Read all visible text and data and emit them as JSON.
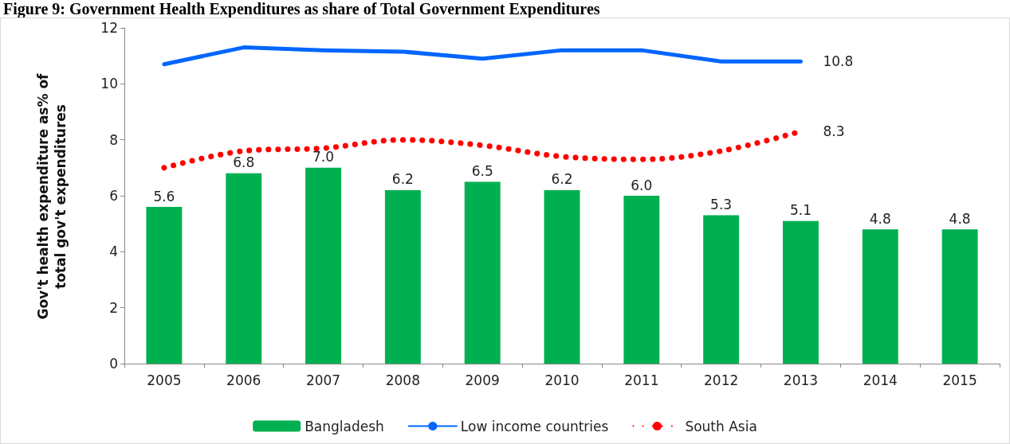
{
  "chart_data": {
    "type": "bar",
    "title": "Figure 9: Government Health Expenditures as share of Total Government Expenditures",
    "ylabel": "Gov't health expenditure as% of total gov't expenditures",
    "categories": [
      "2005",
      "2006",
      "2007",
      "2008",
      "2009",
      "2010",
      "2011",
      "2012",
      "2013",
      "2014",
      "2015"
    ],
    "series": [
      {
        "name": "Bangladesh",
        "color": "#00b050",
        "values": [
          5.6,
          6.8,
          7.0,
          6.2,
          6.5,
          6.2,
          6.0,
          5.3,
          5.1,
          4.8,
          4.8
        ],
        "value_labels": [
          "5.6",
          "6.8",
          "7.0",
          "6.2",
          "6.5",
          "6.2",
          "6.0",
          "5.3",
          "5.1",
          "4.8",
          "4.8"
        ]
      },
      {
        "name": "Low income countries",
        "type": "line",
        "color": "#0066ff",
        "line_style": "solid",
        "values": [
          10.7,
          11.3,
          11.2,
          11.15,
          10.9,
          11.2,
          11.2,
          10.8,
          10.8,
          null,
          null
        ],
        "value_labels": [
          null,
          null,
          null,
          null,
          null,
          null,
          null,
          null,
          "10.8",
          null,
          null
        ]
      },
      {
        "name": "South Asia",
        "type": "line",
        "color": "#ff0000",
        "line_style": "dotted",
        "values": [
          7.0,
          7.6,
          7.7,
          8.0,
          7.8,
          7.4,
          7.3,
          7.6,
          8.3,
          null,
          null
        ],
        "value_labels": [
          null,
          null,
          null,
          null,
          null,
          null,
          null,
          null,
          "8.3",
          null,
          null
        ]
      }
    ],
    "ylim": [
      0,
      12
    ],
    "yticks": [
      0,
      2,
      4,
      6,
      8,
      10,
      12
    ],
    "grid": false,
    "legend": "bottom",
    "marker": "none"
  }
}
